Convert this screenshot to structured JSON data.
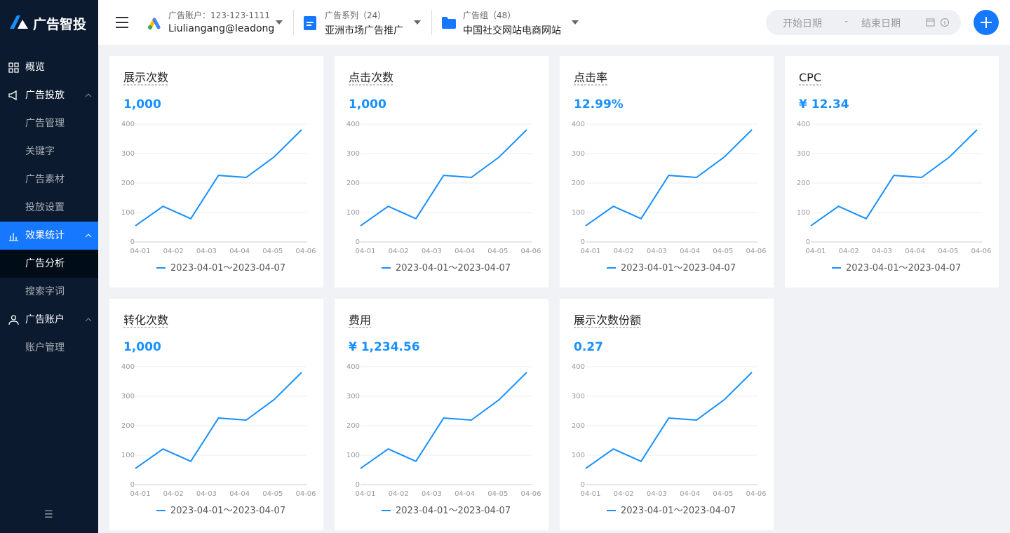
{
  "sidebar": {
    "logo": "广告智投",
    "menu": [
      {
        "label": "概览"
      },
      {
        "label": "广告投放",
        "children": [
          "广告管理",
          "关键字",
          "广告素材",
          "投放设置"
        ]
      },
      {
        "label": "效果统计",
        "children": [
          "广告分析",
          "搜索字词"
        ]
      },
      {
        "label": "广告账户",
        "children": [
          "账户管理"
        ]
      }
    ]
  },
  "header": {
    "account": {
      "label": "广告账户：123-123-1111",
      "value": "Liuliangang@leadong"
    },
    "campaign": {
      "label": "广告系列（24）",
      "value": "亚洲市场广告推广"
    },
    "group": {
      "label": "广告组（48）",
      "value": "中国社交网站电商网站"
    },
    "date": {
      "start": "开始日期",
      "separator": "-",
      "end": "结束日期"
    }
  },
  "cards": [
    {
      "title": "展示次数",
      "value": "1,000",
      "chart": {
        "type": "line",
        "xticks": [
          "04-01",
          "04-02",
          "04-03",
          "04-04",
          "04-05",
          "04-06"
        ],
        "ylim": [
          0,
          400
        ],
        "yticks": [
          0,
          100,
          200,
          300,
          400
        ],
        "series": [
          {
            "name": "2023-04-01～2023-04-07",
            "color": "#1890ff",
            "values": [
              55,
              121,
              79,
              226,
              219,
              288,
              381
            ]
          }
        ]
      }
    },
    {
      "title": "点击次数",
      "value": "1,000",
      "chart": {
        "type": "line",
        "xticks": [
          "04-01",
          "04-02",
          "04-03",
          "04-04",
          "04-05",
          "04-06"
        ],
        "ylim": [
          0,
          400
        ],
        "yticks": [
          0,
          100,
          200,
          300,
          400
        ],
        "series": [
          {
            "name": "2023-04-01～2023-04-07",
            "color": "#1890ff",
            "values": [
              55,
              121,
              79,
              226,
              219,
              288,
              381
            ]
          }
        ]
      }
    },
    {
      "title": "点击率",
      "value": "12.99%",
      "chart": {
        "type": "line",
        "xticks": [
          "04-01",
          "04-02",
          "04-03",
          "04-04",
          "04-05",
          "04-06"
        ],
        "ylim": [
          0,
          400
        ],
        "yticks": [
          0,
          100,
          200,
          300,
          400
        ],
        "series": [
          {
            "name": "2023-04-01～2023-04-07",
            "color": "#1890ff",
            "values": [
              55,
              121,
              79,
              226,
              219,
              288,
              381
            ]
          }
        ]
      }
    },
    {
      "title": "CPC",
      "value": "¥ 12.34",
      "chart": {
        "type": "line",
        "xticks": [
          "04-01",
          "04-02",
          "04-03",
          "04-04",
          "04-05",
          "04-06"
        ],
        "ylim": [
          0,
          400
        ],
        "yticks": [
          0,
          100,
          200,
          300,
          400
        ],
        "series": [
          {
            "name": "2023-04-01～2023-04-07",
            "color": "#1890ff",
            "values": [
              55,
              121,
              79,
              226,
              219,
              288,
              381
            ]
          }
        ]
      }
    },
    {
      "title": "转化次数",
      "value": "1,000",
      "chart": {
        "type": "line",
        "xticks": [
          "04-01",
          "04-02",
          "04-03",
          "04-04",
          "04-05",
          "04-06"
        ],
        "ylim": [
          0,
          400
        ],
        "yticks": [
          0,
          100,
          200,
          300,
          400
        ],
        "series": [
          {
            "name": "2023-04-01～2023-04-07",
            "color": "#1890ff",
            "values": [
              55,
              121,
              79,
              226,
              219,
              288,
              381
            ]
          }
        ]
      }
    },
    {
      "title": "费用",
      "value": "¥ 1,234.56",
      "chart": {
        "type": "line",
        "xticks": [
          "04-01",
          "04-02",
          "04-03",
          "04-04",
          "04-05",
          "04-06"
        ],
        "ylim": [
          0,
          400
        ],
        "yticks": [
          0,
          100,
          200,
          300,
          400
        ],
        "series": [
          {
            "name": "2023-04-01～2023-04-07",
            "color": "#1890ff",
            "values": [
              55,
              121,
              79,
              226,
              219,
              288,
              381
            ]
          }
        ]
      }
    },
    {
      "title": "展示次数份额",
      "value": "0.27",
      "chart": {
        "type": "line",
        "xticks": [
          "04-01",
          "04-02",
          "04-03",
          "04-04",
          "04-05",
          "04-06"
        ],
        "ylim": [
          0,
          400
        ],
        "yticks": [
          0,
          100,
          200,
          300,
          400
        ],
        "series": [
          {
            "name": "2023-04-01～2023-04-07",
            "color": "#1890ff",
            "values": [
              55,
              121,
              79,
              226,
              219,
              288,
              381
            ]
          }
        ]
      }
    }
  ]
}
